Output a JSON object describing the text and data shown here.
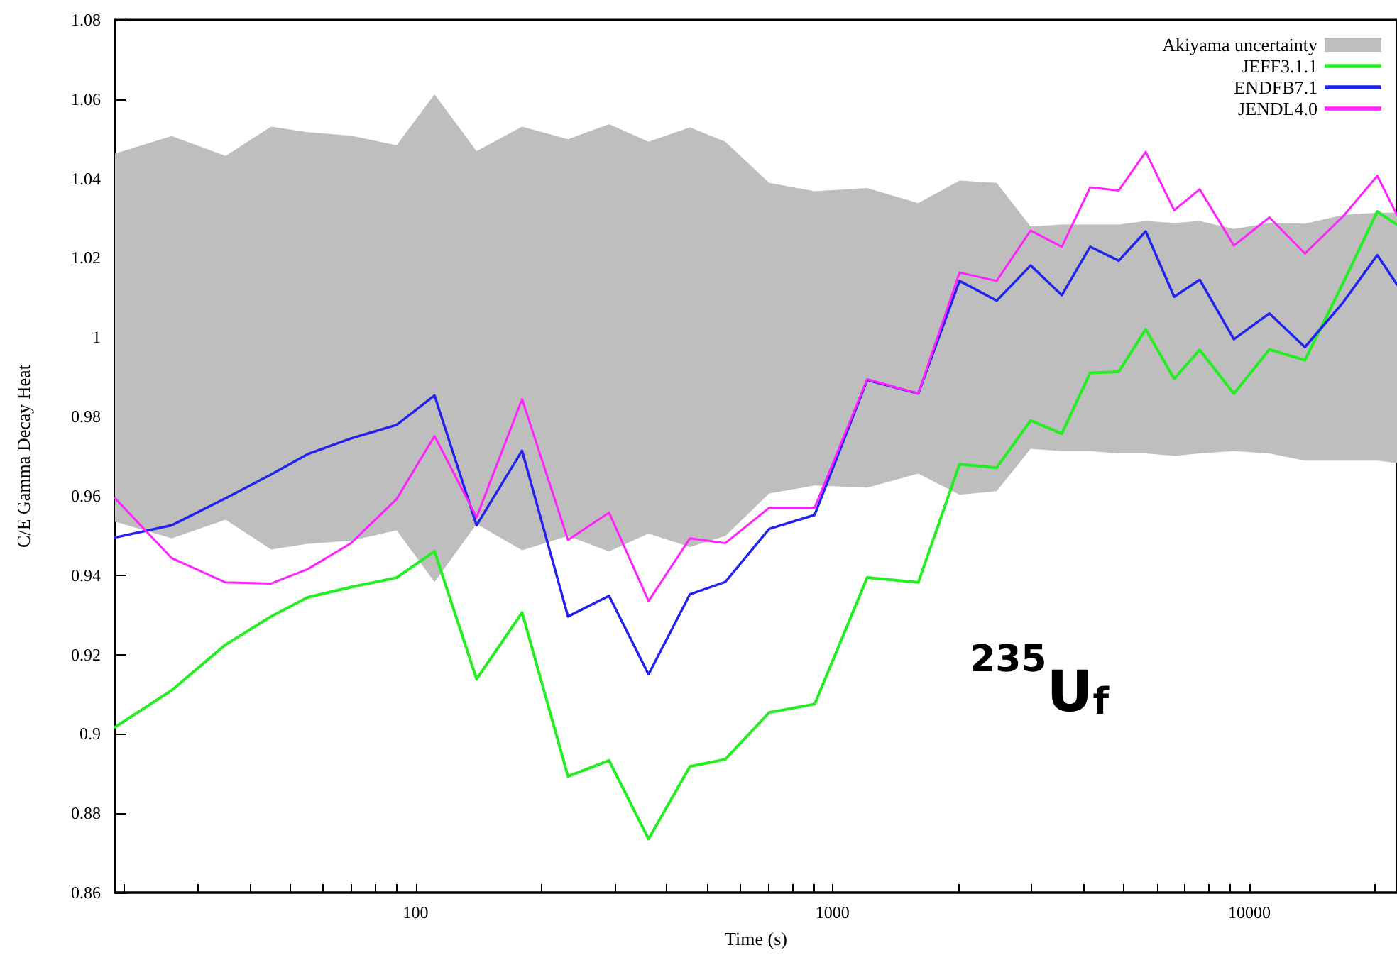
{
  "chart_data": {
    "type": "line",
    "xlabel": "Time (s)",
    "ylabel": "C/E Gamma Decay Heat",
    "annotations": [
      "$^{235}$U$_{f}$"
    ],
    "x": [
      19,
      26,
      35,
      45,
      55,
      70,
      90,
      111,
      140,
      180,
      232,
      291,
      362,
      455,
      553,
      705,
      906,
      1211,
      1606,
      2017,
      2476,
      2987,
      3548,
      4150,
      4860,
      5640,
      6600,
      7600,
      9180,
      11170,
      13590,
      16790,
      20270,
      22600
    ],
    "log": "x",
    "xlim": [
      19,
      22600
    ],
    "ylim": [
      0.86,
      1.08
    ],
    "xticks": [
      {
        "value": 20,
        "label": null
      },
      {
        "value": 30,
        "label": null
      },
      {
        "value": 40,
        "label": null
      },
      {
        "value": 50,
        "label": null
      },
      {
        "value": 60,
        "label": null
      },
      {
        "value": 70,
        "label": null
      },
      {
        "value": 80,
        "label": null
      },
      {
        "value": 90,
        "label": null
      },
      100,
      {
        "value": 200,
        "label": null
      },
      {
        "value": 300,
        "label": null
      },
      {
        "value": 400,
        "label": null
      },
      {
        "value": 500,
        "label": null
      },
      {
        "value": 600,
        "label": null
      },
      {
        "value": 700,
        "label": null
      },
      {
        "value": 800,
        "label": null
      },
      {
        "value": 900,
        "label": null
      },
      1000,
      {
        "value": 2000,
        "label": null
      },
      {
        "value": 3000,
        "label": null
      },
      {
        "value": 4000,
        "label": null
      },
      {
        "value": 5000,
        "label": null
      },
      {
        "value": 6000,
        "label": null
      },
      {
        "value": 7000,
        "label": null
      },
      {
        "value": 8000,
        "label": null
      },
      {
        "value": 9000,
        "label": null
      },
      10000,
      {
        "value": 20000,
        "label": null
      }
    ],
    "yticks": [
      0.86,
      0.88,
      0.9,
      0.92,
      0.94,
      0.96,
      0.98,
      1,
      1.02,
      1.04,
      1.06,
      1.08
    ],
    "grid": false,
    "legend": "top right",
    "marker": "none",
    "line_style": "solid",
    "series": [
      {
        "name": "Akiyama uncertainty",
        "type": "area",
        "color": "#bebebe",
        "values": [
          null,
          null,
          null,
          null,
          null,
          null,
          null,
          null,
          null,
          null,
          null,
          null,
          null,
          null,
          null,
          null,
          null,
          null,
          null,
          null,
          null,
          null,
          null,
          null,
          null,
          null,
          null,
          null,
          null,
          null,
          null,
          null,
          null,
          null
        ],
        "lower": [
          0.9535,
          0.9493,
          0.954,
          0.9465,
          0.9479,
          0.9487,
          0.9513,
          0.9383,
          0.9529,
          0.9463,
          0.9499,
          0.946,
          0.9505,
          0.9471,
          0.9499,
          0.9606,
          0.9626,
          0.9621,
          0.9656,
          0.9603,
          0.9612,
          0.9719,
          0.9713,
          0.9713,
          0.9707,
          0.9707,
          0.9701,
          0.9707,
          0.9713,
          0.9707,
          0.9689,
          0.9689,
          0.9689,
          0.9683
        ],
        "upper": [
          1.0463,
          1.0507,
          1.0457,
          1.0531,
          1.0517,
          1.0508,
          1.0484,
          1.0612,
          1.0469,
          1.0531,
          1.0499,
          1.0537,
          1.0493,
          1.0529,
          1.0493,
          1.0389,
          1.0368,
          1.0376,
          1.0338,
          1.0395,
          1.0389,
          1.0279,
          1.0284,
          1.0284,
          1.0284,
          1.0293,
          1.0288,
          1.0293,
          1.0273,
          1.0288,
          1.0286,
          1.0308,
          1.0314,
          1.0314
        ]
      },
      {
        "name": "JEFF3.1.1",
        "color": "#22ee22",
        "values": [
          0.9017,
          0.911,
          0.9225,
          0.9296,
          0.9344,
          0.937,
          0.9394,
          0.946,
          0.9138,
          0.9306,
          0.8893,
          0.8933,
          0.8735,
          0.8918,
          0.8936,
          0.9054,
          0.9075,
          0.9394,
          0.9382,
          0.968,
          0.9671,
          0.979,
          0.9757,
          0.991,
          0.9913,
          1.002,
          0.9895,
          0.9968,
          0.9858,
          0.9969,
          0.9942,
          1.0137,
          1.0317,
          1.0284
        ]
      },
      {
        "name": "ENDFB7.1",
        "color": "#2222ee",
        "values": [
          0.9495,
          0.9526,
          0.9594,
          0.9654,
          0.9705,
          0.9745,
          0.9779,
          0.9853,
          0.9526,
          0.9714,
          0.9296,
          0.9348,
          0.915,
          0.9352,
          0.9383,
          0.9517,
          0.9552,
          0.9892,
          0.9858,
          1.0142,
          1.0092,
          1.0181,
          1.0106,
          1.0228,
          1.0193,
          1.0267,
          1.0102,
          1.0145,
          0.9995,
          1.006,
          0.9975,
          1.0088,
          1.0207,
          1.0133
        ]
      },
      {
        "name": "JENDL4.0",
        "color": "#ff22ff",
        "values": [
          0.9594,
          0.9443,
          0.9382,
          0.9379,
          0.9415,
          0.9481,
          0.9592,
          0.9751,
          0.9546,
          0.9844,
          0.9489,
          0.9558,
          0.9335,
          0.9493,
          0.9481,
          0.957,
          0.957,
          0.9894,
          0.9858,
          1.0163,
          1.0142,
          1.0269,
          1.0228,
          1.0378,
          1.037,
          1.0467,
          1.032,
          1.0373,
          1.0231,
          1.0302,
          1.0211,
          1.0305,
          1.0407,
          1.0308
        ]
      }
    ]
  }
}
